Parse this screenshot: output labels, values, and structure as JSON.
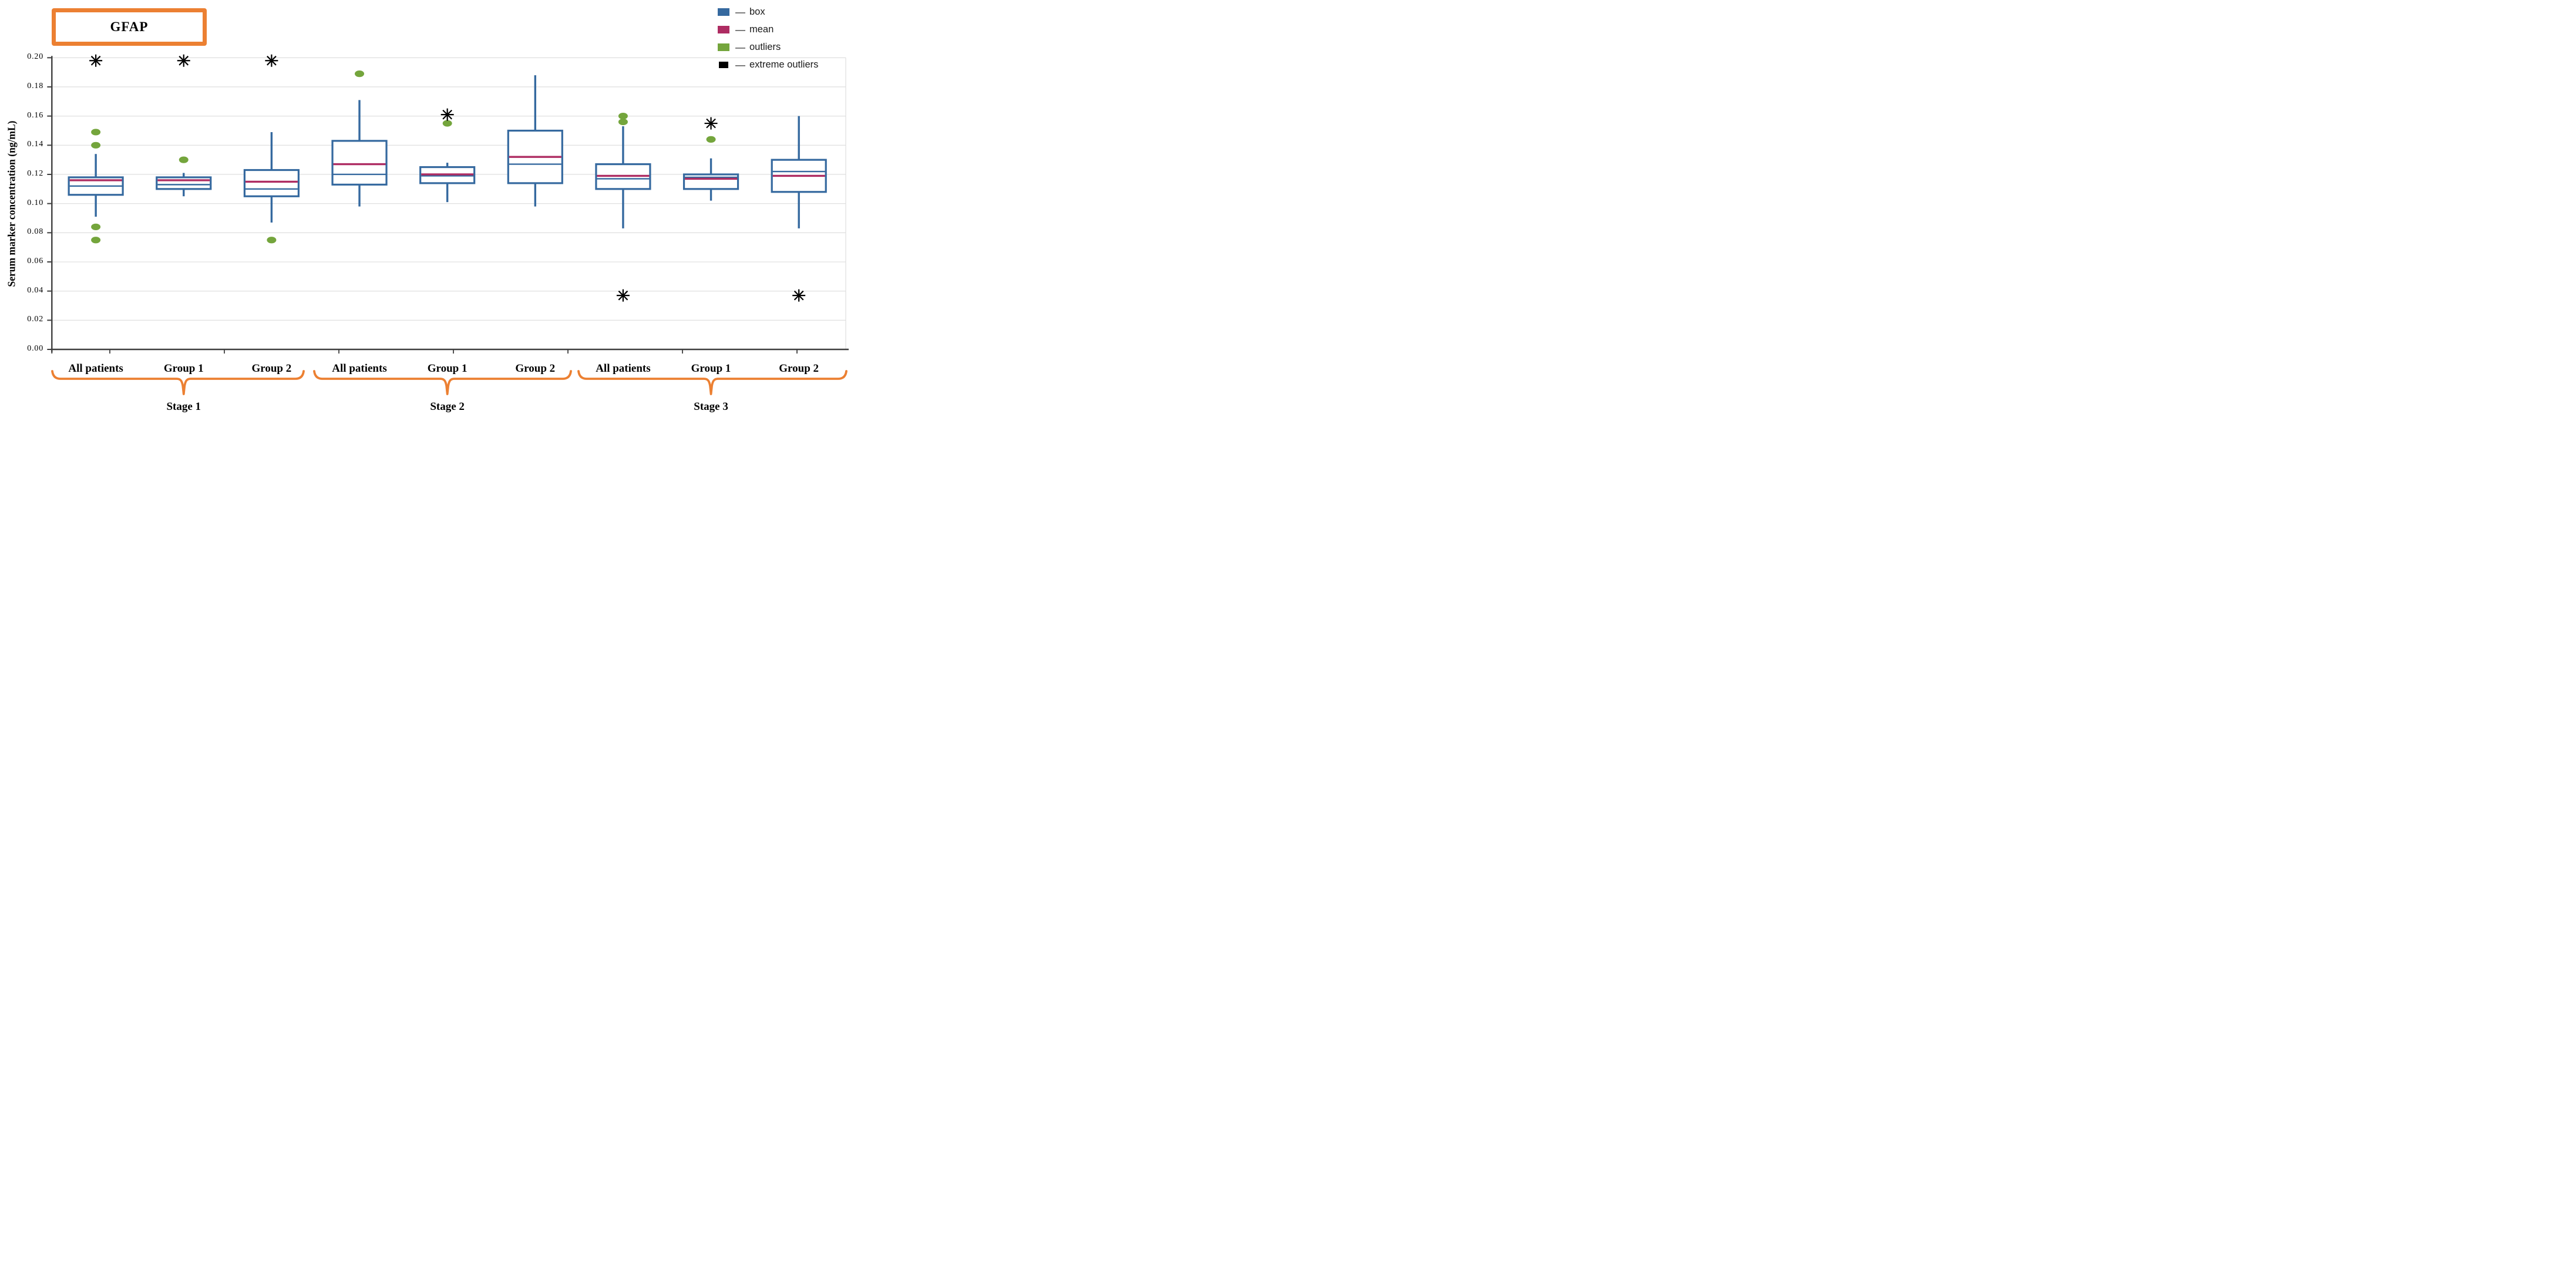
{
  "title": "GFAP",
  "ylabel": "Serum marker concentration (ng/mL)",
  "legend": {
    "items": [
      {
        "label": "box",
        "color": "#35699F"
      },
      {
        "label": "mean",
        "color": "#AE2C62"
      },
      {
        "label": "outliers",
        "color": "#74A53C"
      },
      {
        "label": "extreme outliers",
        "color": "#000000"
      }
    ]
  },
  "colors": {
    "box": "#35699F",
    "mean": "#AE2C62",
    "outlier": "#74A53C",
    "extreme": "#000000",
    "brace": "#EC8032",
    "title_border": "#EC8032",
    "grid": "#DBDBDB",
    "axis": "#3F3F3F"
  },
  "chart_data": {
    "type": "boxplot",
    "title": "GFAP",
    "ylabel": "Serum marker concentration (ng/mL)",
    "ylim": [
      0.0,
      0.2
    ],
    "ytick_step": 0.02,
    "ytick_labels": [
      "0.00",
      "0.02",
      "0.04",
      "0.06",
      "0.08",
      "0.10",
      "0.12",
      "0.14",
      "0.16",
      "0.18",
      "0.20"
    ],
    "grid": true,
    "legend_position": "top-right",
    "groups": [
      {
        "stage": "Stage 1",
        "categories": [
          "All patients",
          "Group 1",
          "Group 2"
        ]
      },
      {
        "stage": "Stage 2",
        "categories": [
          "All patients",
          "Group 1",
          "Group 2"
        ]
      },
      {
        "stage": "Stage 3",
        "categories": [
          "All patients",
          "Group 1",
          "Group 2"
        ]
      }
    ],
    "series": [
      {
        "stage": "Stage 1",
        "category": "All patients",
        "whisker_low": 0.091,
        "q1": 0.106,
        "median": 0.112,
        "mean": 0.116,
        "q3": 0.118,
        "whisker_high": 0.134,
        "outliers": [
          0.149,
          0.14,
          0.084,
          0.075
        ],
        "extreme_outliers": [
          0.198
        ]
      },
      {
        "stage": "Stage 1",
        "category": "Group 1",
        "whisker_low": 0.105,
        "q1": 0.11,
        "median": 0.113,
        "mean": 0.116,
        "q3": 0.118,
        "whisker_high": 0.121,
        "outliers": [
          0.13
        ],
        "extreme_outliers": [
          0.198
        ]
      },
      {
        "stage": "Stage 1",
        "category": "Group 2",
        "whisker_low": 0.087,
        "q1": 0.105,
        "median": 0.11,
        "mean": 0.115,
        "q3": 0.123,
        "whisker_high": 0.149,
        "outliers": [
          0.075
        ],
        "extreme_outliers": [
          0.198
        ]
      },
      {
        "stage": "Stage 2",
        "category": "All patients",
        "whisker_low": 0.098,
        "q1": 0.113,
        "median": 0.12,
        "mean": 0.127,
        "q3": 0.143,
        "whisker_high": 0.171,
        "outliers": [
          0.189
        ],
        "extreme_outliers": []
      },
      {
        "stage": "Stage 2",
        "category": "Group 1",
        "whisker_low": 0.101,
        "q1": 0.114,
        "median": 0.119,
        "mean": 0.12,
        "q3": 0.125,
        "whisker_high": 0.128,
        "outliers": [
          0.155
        ],
        "extreme_outliers": [
          0.161
        ]
      },
      {
        "stage": "Stage 2",
        "category": "Group 2",
        "whisker_low": 0.098,
        "q1": 0.114,
        "median": 0.127,
        "mean": 0.132,
        "q3": 0.15,
        "whisker_high": 0.188,
        "outliers": [],
        "extreme_outliers": []
      },
      {
        "stage": "Stage 3",
        "category": "All patients",
        "whisker_low": 0.083,
        "q1": 0.11,
        "median": 0.117,
        "mean": 0.119,
        "q3": 0.127,
        "whisker_high": 0.153,
        "outliers": [
          0.16,
          0.156
        ],
        "extreme_outliers": [
          0.037
        ]
      },
      {
        "stage": "Stage 3",
        "category": "Group 1",
        "whisker_low": 0.102,
        "q1": 0.11,
        "median": 0.118,
        "mean": 0.117,
        "q3": 0.12,
        "whisker_high": 0.131,
        "outliers": [
          0.144
        ],
        "extreme_outliers": [
          0.155
        ]
      },
      {
        "stage": "Stage 3",
        "category": "Group 2",
        "whisker_low": 0.083,
        "q1": 0.108,
        "median": 0.122,
        "mean": 0.119,
        "q3": 0.13,
        "whisker_high": 0.16,
        "outliers": [],
        "extreme_outliers": [
          0.037
        ]
      }
    ]
  }
}
